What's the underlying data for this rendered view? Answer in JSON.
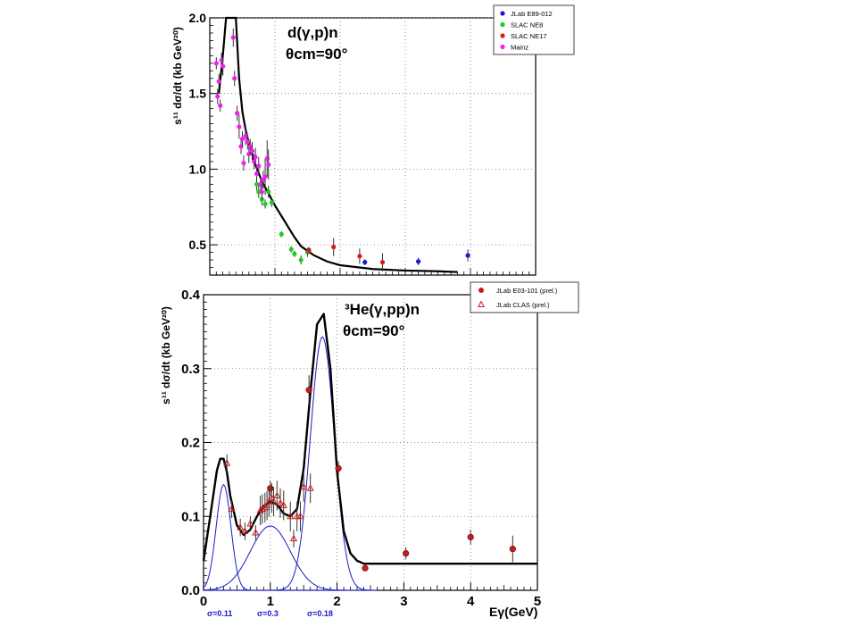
{
  "chart_data": [
    {
      "type": "scatter",
      "title": "d(γ,p)n",
      "subtitle": "θcm=90°",
      "ylabel": "s¹¹ dσ/dt (kb GeV²⁰)",
      "ylim": [
        0.3,
        2.0
      ],
      "xlim": [
        0,
        5
      ],
      "yticks": [
        0.5,
        1.0,
        1.5,
        2.0
      ],
      "ytick_labels": [
        "0.5",
        "1.0",
        "1.5",
        "2.0"
      ],
      "grid": true,
      "legend_position": "top-right",
      "series": [
        {
          "name": "JLab E89-012",
          "color": "#1a1ad0",
          "marker": "circle",
          "x": [
            1.52,
            2.38,
            3.2,
            3.96
          ],
          "y": [
            0.465,
            0.385,
            0.39,
            0.43
          ],
          "err": [
            0.02,
            0.02,
            0.025,
            0.04
          ]
        },
        {
          "name": "SLAC NE8",
          "color": "#22cc22",
          "marker": "circle",
          "x": [
            0.72,
            0.75,
            0.8,
            0.85,
            0.9,
            0.95,
            1.1,
            1.25,
            1.3,
            1.4,
            1.5
          ],
          "y": [
            0.9,
            0.85,
            0.8,
            0.77,
            0.85,
            0.78,
            0.57,
            0.47,
            0.44,
            0.4,
            0.45
          ],
          "err": [
            0.04,
            0.04,
            0.04,
            0.03,
            0.04,
            0.03,
            0.02,
            0.02,
            0.02,
            0.03,
            0.03
          ]
        },
        {
          "name": "SLAC NE17",
          "color": "#dd1a1a",
          "marker": "circle",
          "x": [
            1.52,
            1.9,
            2.3,
            2.65
          ],
          "y": [
            0.46,
            0.485,
            0.425,
            0.385
          ],
          "err": [
            0.02,
            0.06,
            0.05,
            0.06
          ]
        },
        {
          "name": "Mainz",
          "color": "#ee22ee",
          "marker": "circle",
          "x": [
            0.1,
            0.12,
            0.14,
            0.16,
            0.18,
            0.2,
            0.2,
            0.36,
            0.38,
            0.42,
            0.45,
            0.48,
            0.5,
            0.52,
            0.55,
            0.58,
            0.6,
            0.62,
            0.65,
            0.68,
            0.7,
            0.72,
            0.75,
            0.78,
            0.8,
            0.82,
            0.85,
            0.88,
            0.9
          ],
          "y": [
            1.7,
            1.48,
            1.58,
            1.42,
            1.72,
            1.68,
            1.68,
            1.87,
            1.6,
            1.37,
            1.28,
            1.15,
            1.2,
            1.04,
            1.22,
            1.18,
            1.1,
            1.15,
            1.12,
            1.05,
            1.08,
            0.97,
            1.02,
            0.9,
            0.85,
            0.93,
            0.95,
            1.07,
            1.03
          ],
          "err": [
            0.04,
            0.05,
            0.05,
            0.04,
            0.05,
            0.06,
            0.06,
            0.06,
            0.05,
            0.05,
            0.08,
            0.05,
            0.05,
            0.05,
            0.06,
            0.05,
            0.06,
            0.05,
            0.06,
            0.05,
            0.06,
            0.05,
            0.06,
            0.05,
            0.05,
            0.06,
            0.12,
            0.12,
            0.1
          ]
        }
      ],
      "curve": {
        "x": [
          0.14,
          0.2,
          0.25,
          0.3,
          0.35,
          0.4,
          0.45,
          0.5,
          0.55,
          0.6,
          0.7,
          0.8,
          0.9,
          1.0,
          1.1,
          1.2,
          1.3,
          1.4,
          1.6,
          1.8,
          2.0,
          2.5,
          3.0,
          3.5,
          3.8
        ],
        "y": [
          1.5,
          1.75,
          2.0,
          2.0,
          2.0,
          2.0,
          1.6,
          1.38,
          1.26,
          1.17,
          1.03,
          0.92,
          0.84,
          0.76,
          0.69,
          0.62,
          0.55,
          0.49,
          0.43,
          0.39,
          0.365,
          0.34,
          0.33,
          0.325,
          0.32
        ]
      }
    },
    {
      "type": "scatter",
      "title": "³He(γ,pp)n",
      "subtitle": "θcm=90°",
      "xlabel": "Eγ(GeV)",
      "ylabel": "s¹¹ dσ/dt (kb GeV²⁰)",
      "xlim": [
        0,
        5
      ],
      "ylim": [
        0,
        0.4
      ],
      "xticks": [
        0,
        1,
        2,
        3,
        4,
        5
      ],
      "xtick_labels": [
        "0",
        "1",
        "2",
        "3",
        "4",
        "5"
      ],
      "yticks": [
        0.0,
        0.1,
        0.2,
        0.3,
        0.4
      ],
      "ytick_labels": [
        "0.0",
        "0.1",
        "0.2",
        "0.3",
        "0.4"
      ],
      "grid": true,
      "legend_position": "top-right",
      "annotations": [
        "σ=0.11",
        "σ=0.3",
        "σ=0.18"
      ],
      "annotation_color": "#1a1acc",
      "series": [
        {
          "name": "JLab E03-101 (prel.)",
          "color": "#cc1a1a",
          "marker": "circle-filled",
          "x": [
            1.0,
            1.58,
            2.02,
            2.42,
            3.03,
            4.0,
            4.63
          ],
          "y": [
            0.138,
            0.271,
            0.165,
            0.03,
            0.05,
            0.072,
            0.056
          ],
          "err": [
            0.01,
            0.02,
            0.01,
            0.004,
            0.008,
            0.01,
            0.018
          ]
        },
        {
          "name": "JLab CLAS (prel.)",
          "color": "#cc1a1a",
          "marker": "triangle-open",
          "x": [
            0.35,
            0.42,
            0.55,
            0.62,
            0.7,
            0.78,
            0.85,
            0.88,
            0.92,
            0.95,
            0.98,
            1.02,
            1.05,
            1.1,
            1.15,
            1.2,
            1.3,
            1.35,
            1.4,
            1.45,
            1.5,
            1.6
          ],
          "y": [
            0.172,
            0.11,
            0.085,
            0.08,
            0.09,
            0.078,
            0.108,
            0.11,
            0.112,
            0.115,
            0.12,
            0.125,
            0.12,
            0.128,
            0.118,
            0.115,
            0.1,
            0.07,
            0.1,
            0.1,
            0.14,
            0.138
          ],
          "err": [
            0.012,
            0.012,
            0.012,
            0.012,
            0.01,
            0.01,
            0.02,
            0.02,
            0.02,
            0.02,
            0.02,
            0.02,
            0.02,
            0.02,
            0.02,
            0.02,
            0.02,
            0.012,
            0.02,
            0.02,
            0.02,
            0.02
          ]
        }
      ],
      "fit_total": {
        "x": [
          0.0,
          0.1,
          0.2,
          0.25,
          0.3,
          0.35,
          0.4,
          0.5,
          0.6,
          0.7,
          0.8,
          0.9,
          1.0,
          1.1,
          1.2,
          1.3,
          1.4,
          1.5,
          1.6,
          1.7,
          1.8,
          1.9,
          2.0,
          2.1,
          2.2,
          2.3,
          2.4,
          2.5,
          3.0,
          4.0,
          5.0
        ],
        "y": [
          0.04,
          0.1,
          0.162,
          0.178,
          0.178,
          0.16,
          0.128,
          0.088,
          0.075,
          0.082,
          0.1,
          0.114,
          0.12,
          0.116,
          0.104,
          0.1,
          0.11,
          0.165,
          0.268,
          0.36,
          0.374,
          0.3,
          0.16,
          0.08,
          0.05,
          0.04,
          0.036,
          0.036,
          0.036,
          0.036,
          0.036
        ]
      },
      "gaussians": [
        {
          "mean": 0.3,
          "sigma": 0.11,
          "amplitude": 0.143
        },
        {
          "mean": 1.0,
          "sigma": 0.3,
          "amplitude": 0.087
        },
        {
          "mean": 1.78,
          "sigma": 0.18,
          "amplitude": 0.343
        }
      ]
    }
  ]
}
